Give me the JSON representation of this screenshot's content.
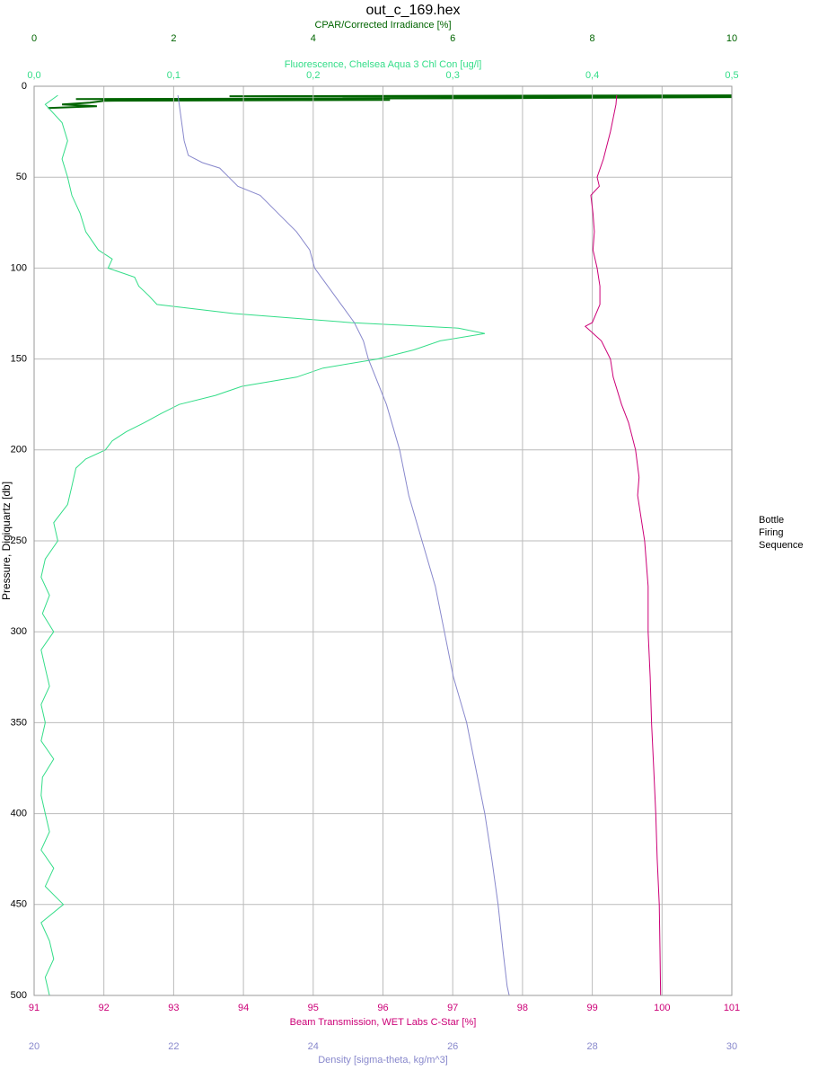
{
  "chart_data": {
    "type": "line",
    "title": "out_c_169.hex",
    "y_label": "Pressure, Digiquartz [db]",
    "ylim": [
      0,
      500
    ],
    "yticks": [
      0,
      50,
      100,
      150,
      200,
      250,
      300,
      350,
      400,
      450,
      500
    ],
    "grid": true,
    "side_note": [
      "Bottle",
      "Firing",
      "Sequence"
    ],
    "axes": [
      {
        "label": "CPAR/Corrected Irradiance [%]",
        "position": "top",
        "color": "#006400",
        "xlim": [
          0,
          10
        ],
        "xticks": [
          0,
          2,
          4,
          6,
          8,
          10
        ],
        "pressure": [
          5,
          5.5,
          6,
          6.5,
          7,
          7.5,
          8,
          9,
          10,
          11,
          12
        ],
        "values": [
          10,
          2.8,
          10,
          6.8,
          0.6,
          5.1,
          1.0,
          0.8,
          0.4,
          0.9,
          0.2
        ]
      },
      {
        "label": "Fluorescence, Chelsea Aqua 3 Chl Con [ug/l]",
        "position": "top",
        "color": "#33dd88",
        "xlim": [
          0,
          0.5
        ],
        "xticks": [
          {
            "value": 0,
            "label": "0,0"
          },
          {
            "value": 0.1,
            "label": "0,1"
          },
          {
            "value": 0.2,
            "label": "0,2"
          },
          {
            "value": 0.3,
            "label": "0,3"
          },
          {
            "value": 0.4,
            "label": "0,4"
          },
          {
            "value": 0.5,
            "label": "0,5"
          }
        ],
        "pressure": [
          5,
          10,
          20,
          30,
          40,
          50,
          60,
          70,
          80,
          90,
          95,
          100,
          105,
          110,
          115,
          120,
          125,
          130,
          133,
          136,
          140,
          145,
          150,
          155,
          160,
          165,
          170,
          175,
          180,
          185,
          190,
          195,
          200,
          205,
          210,
          220,
          230,
          240,
          250,
          260,
          270,
          280,
          290,
          300,
          310,
          320,
          330,
          340,
          350,
          360,
          370,
          380,
          390,
          400,
          410,
          420,
          430,
          440,
          450,
          460,
          470,
          480,
          490,
          500
        ],
        "values": [
          0.017,
          0.008,
          0.02,
          0.024,
          0.02,
          0.024,
          0.027,
          0.033,
          0.037,
          0.046,
          0.056,
          0.053,
          0.072,
          0.075,
          0.082,
          0.088,
          0.143,
          0.227,
          0.304,
          0.323,
          0.291,
          0.272,
          0.246,
          0.207,
          0.188,
          0.149,
          0.13,
          0.104,
          0.091,
          0.079,
          0.066,
          0.056,
          0.051,
          0.037,
          0.03,
          0.027,
          0.024,
          0.014,
          0.017,
          0.008,
          0.005,
          0.011,
          0.006,
          0.014,
          0.005,
          0.008,
          0.011,
          0.005,
          0.008,
          0.005,
          0.014,
          0.006,
          0.005,
          0.008,
          0.011,
          0.005,
          0.014,
          0.008,
          0.021,
          0.005,
          0.011,
          0.014,
          0.008,
          0.011
        ]
      },
      {
        "label": "Beam Transmission, WET Labs C-Star [%]",
        "position": "bottom",
        "color": "#cc0077",
        "xlim": [
          91,
          101
        ],
        "xticks": [
          91,
          92,
          93,
          94,
          95,
          96,
          97,
          98,
          99,
          100,
          101
        ],
        "pressure": [
          5,
          10,
          25,
          40,
          50,
          55,
          60,
          70,
          80,
          90,
          100,
          110,
          120,
          130,
          132,
          140,
          150,
          160,
          175,
          185,
          200,
          215,
          225,
          250,
          275,
          300,
          325,
          350,
          375,
          400,
          425,
          450,
          475,
          500
        ],
        "values": [
          99.35,
          99.34,
          99.26,
          99.16,
          99.07,
          99.1,
          98.98,
          99.01,
          99.03,
          99.01,
          99.07,
          99.11,
          99.11,
          99.0,
          98.9,
          99.13,
          99.26,
          99.3,
          99.42,
          99.52,
          99.62,
          99.67,
          99.65,
          99.75,
          99.8,
          99.8,
          99.83,
          99.85,
          99.88,
          99.91,
          99.93,
          99.96,
          99.97,
          99.98
        ]
      },
      {
        "label": "Density [sigma-theta, kg/m^3]",
        "position": "bottom",
        "color": "#8888cc",
        "xlim": [
          20,
          30
        ],
        "xticks": [
          20,
          22,
          24,
          26,
          28,
          30
        ],
        "pressure": [
          5,
          10,
          30,
          38,
          42,
          45,
          50,
          55,
          60,
          70,
          80,
          90,
          100,
          110,
          120,
          130,
          140,
          150,
          175,
          200,
          225,
          250,
          275,
          300,
          325,
          350,
          375,
          400,
          425,
          450,
          475,
          495,
          500
        ],
        "values": [
          22.06,
          22.08,
          22.15,
          22.21,
          22.41,
          22.66,
          22.79,
          22.92,
          23.24,
          23.5,
          23.76,
          23.95,
          24.02,
          24.21,
          24.4,
          24.59,
          24.72,
          24.79,
          25.05,
          25.24,
          25.37,
          25.56,
          25.75,
          25.88,
          26.01,
          26.2,
          26.33,
          26.46,
          26.56,
          26.65,
          26.72,
          26.78,
          26.81
        ]
      }
    ]
  }
}
